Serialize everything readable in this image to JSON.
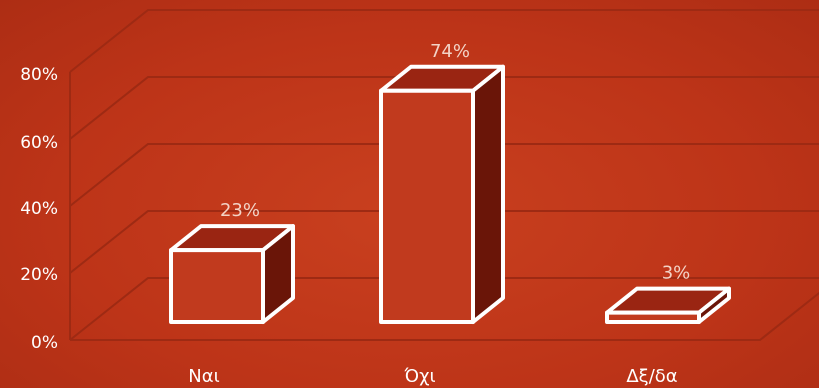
{
  "chart_data": {
    "type": "bar",
    "style": "3d",
    "categories": [
      "Ναι",
      "Όχι",
      "Δξ/δα"
    ],
    "values": [
      23,
      74,
      3
    ],
    "data_labels": [
      "23%",
      "74%",
      "3%"
    ],
    "y_ticks": [
      "0%",
      "20%",
      "40%",
      "60%",
      "80%"
    ],
    "ylim": [
      0,
      80
    ],
    "grid": true,
    "legend": "none",
    "colors": {
      "background": "#c1361b",
      "bar_front": "#c13a1e",
      "bar_top": "#9a2512",
      "bar_side": "#6a1508",
      "bar_outline": "#ffffff",
      "grid": "#9e2a13"
    }
  }
}
